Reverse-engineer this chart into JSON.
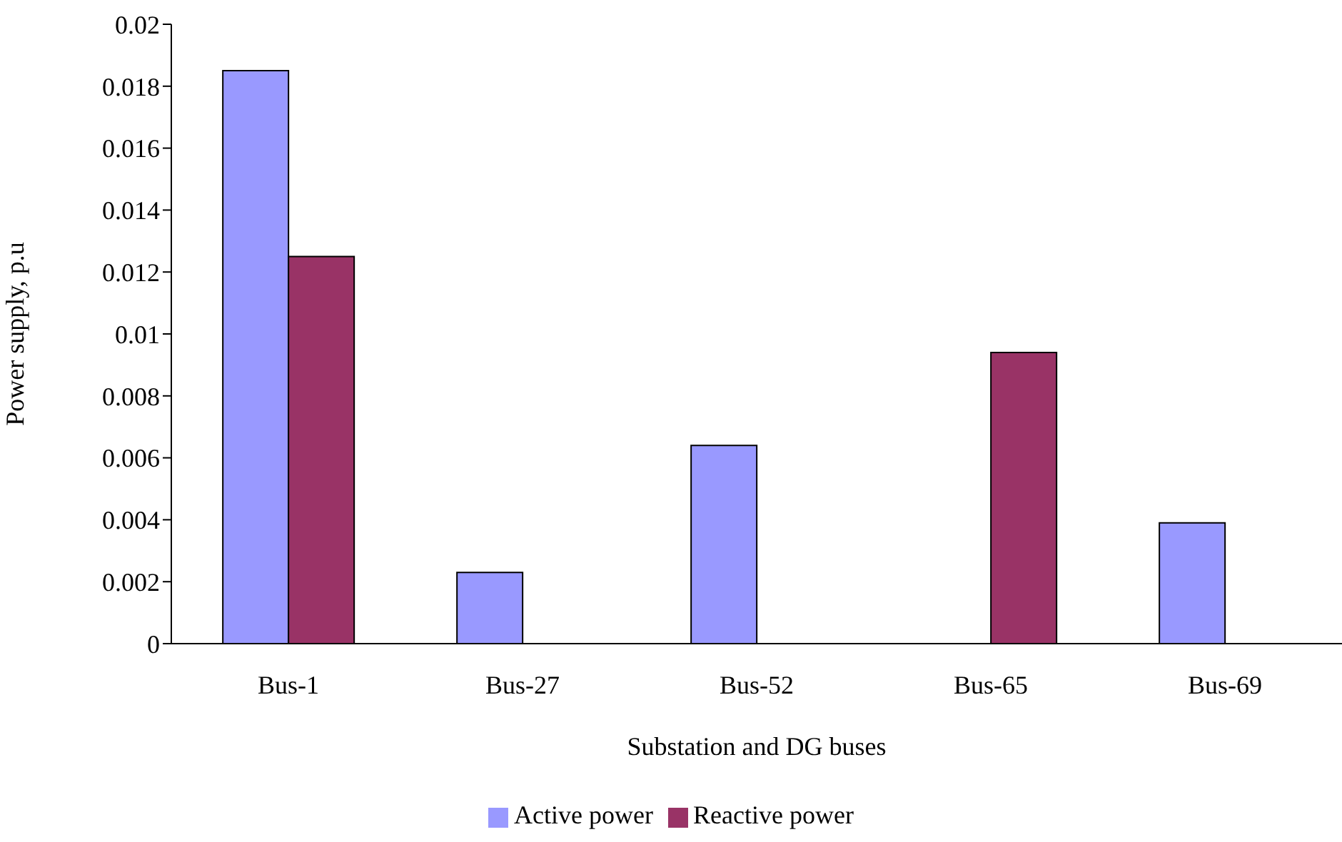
{
  "chart_data": {
    "type": "bar",
    "xlabel": "Substation and DG buses",
    "ylabel": "Power supply, p.u",
    "categories": [
      "Bus-1",
      "Bus-27",
      "Bus-52",
      "Bus-65",
      "Bus-69"
    ],
    "series": [
      {
        "name": "Active power",
        "color": "#9999ff",
        "values": [
          0.0185,
          0.0023,
          0.0064,
          null,
          0.0039
        ]
      },
      {
        "name": "Reactive power",
        "color": "#993366",
        "values": [
          0.0125,
          null,
          null,
          0.0094,
          null
        ]
      }
    ],
    "ylim": [
      0,
      0.02
    ],
    "yticks": [
      0,
      0.002,
      0.004,
      0.006,
      0.008,
      0.01,
      0.012,
      0.014,
      0.016,
      0.018,
      0.02
    ],
    "grid": false,
    "legend": "bottom"
  }
}
